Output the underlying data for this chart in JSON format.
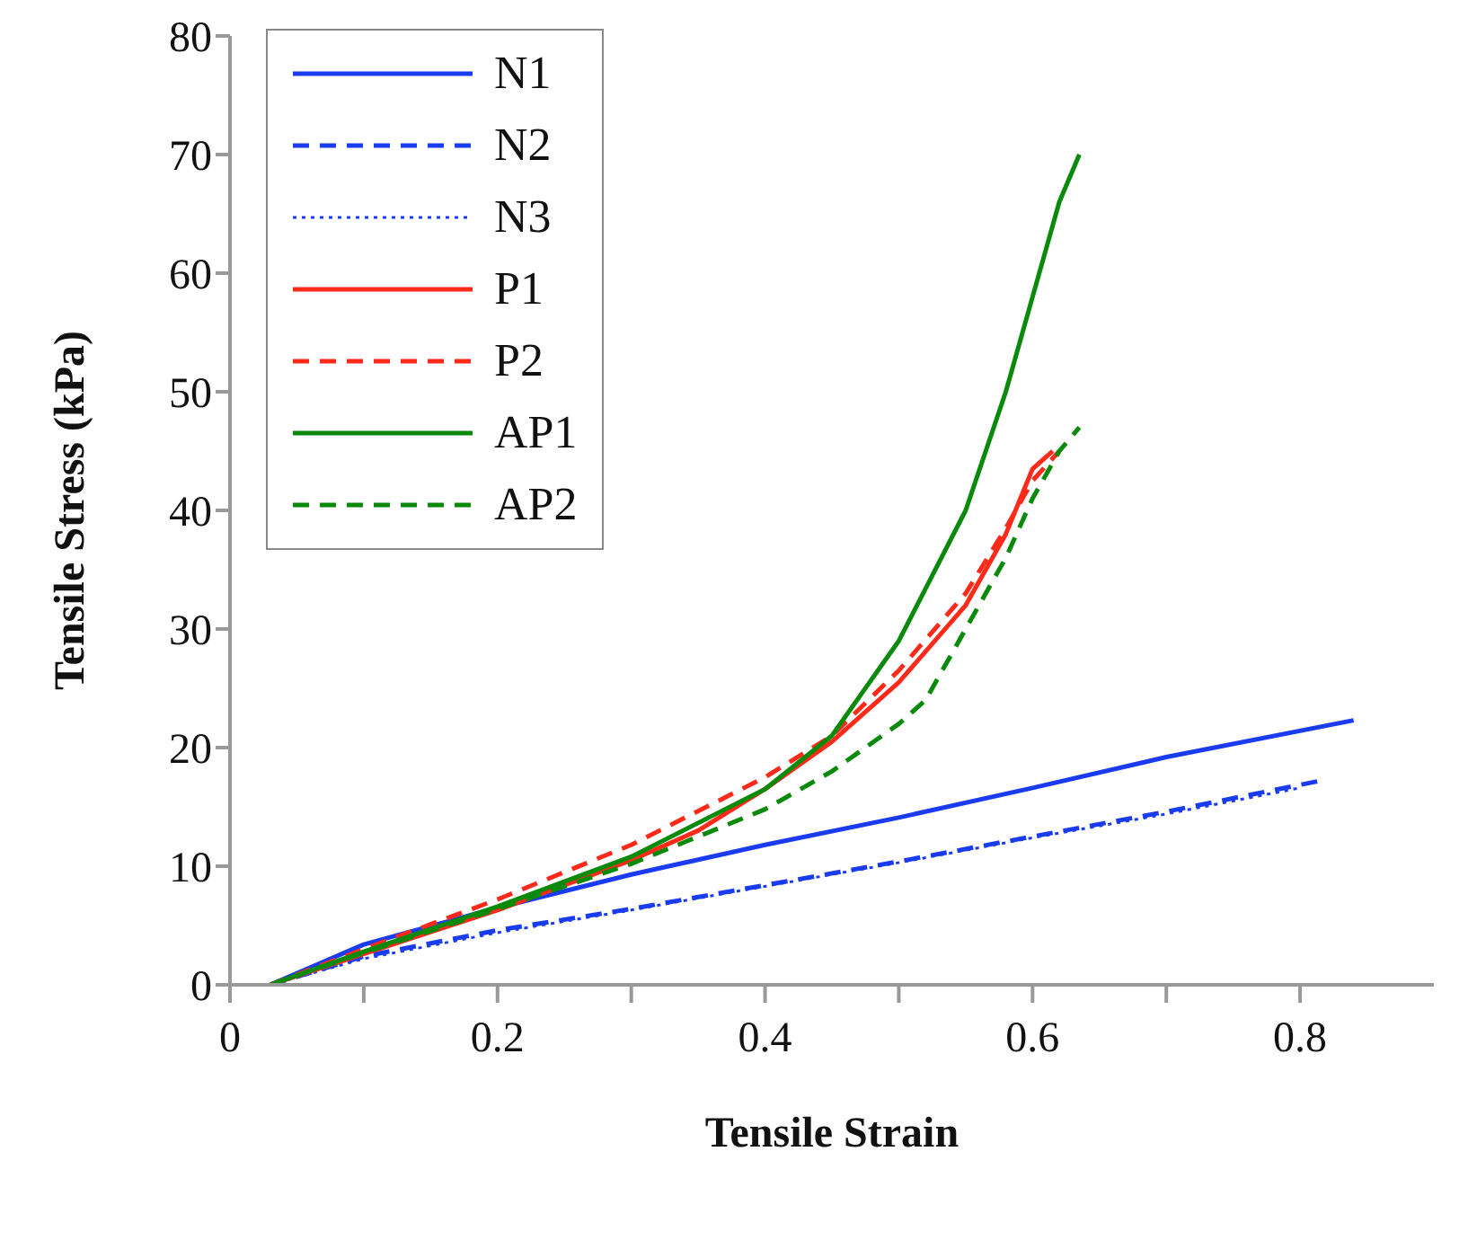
{
  "chart_data": {
    "type": "line",
    "xlabel": "Tensile Strain",
    "ylabel": "Tensile Stress (kPa)",
    "xlim": [
      0,
      0.9
    ],
    "xticks": [
      0,
      {
        "value": 0.1,
        "label": null
      },
      0.2,
      {
        "value": 0.3,
        "label": null
      },
      0.4,
      {
        "value": 0.5,
        "label": null
      },
      0.6,
      {
        "value": 0.7,
        "label": null
      },
      0.8
    ],
    "ylim": [
      0,
      80
    ],
    "yticks": [
      0,
      10,
      20,
      30,
      40,
      50,
      60,
      70,
      80
    ],
    "grid": false,
    "legend": "top left",
    "marker": "none",
    "series": [
      {
        "name": "N1",
        "color": "#1a3cf0",
        "line_style": "solid",
        "x": [
          0.03,
          0.1,
          0.2,
          0.3,
          0.4,
          0.5,
          0.6,
          0.7,
          0.84
        ],
        "values": [
          0,
          3.4,
          6.5,
          9.3,
          11.8,
          14.1,
          16.6,
          19.2,
          22.3
        ]
      },
      {
        "name": "N2",
        "color": "#1a3cf0",
        "line_style": "dashed",
        "x": [
          0.03,
          0.1,
          0.2,
          0.3,
          0.4,
          0.5,
          0.6,
          0.7,
          0.815
        ],
        "values": [
          0,
          2.4,
          4.6,
          6.4,
          8.4,
          10.4,
          12.5,
          14.6,
          17.2
        ]
      },
      {
        "name": "N3",
        "color": "#1a3cf0",
        "line_style": "dotted",
        "x": [
          0.03,
          0.1,
          0.2,
          0.3,
          0.4,
          0.5,
          0.6,
          0.7,
          0.8
        ],
        "values": [
          0,
          2.2,
          4.4,
          6.3,
          8.3,
          10.3,
          12.4,
          14.4,
          16.6
        ]
      },
      {
        "name": "P1",
        "color": "#ff2a1a",
        "line_style": "solid",
        "x": [
          0.03,
          0.1,
          0.2,
          0.3,
          0.35,
          0.4,
          0.45,
          0.5,
          0.55,
          0.58,
          0.6,
          0.615
        ],
        "values": [
          0,
          2.6,
          6.3,
          10.5,
          13,
          16.5,
          20.5,
          25.5,
          32,
          38,
          43.5,
          45
        ]
      },
      {
        "name": "P2",
        "color": "#ff2a1a",
        "line_style": "dashed",
        "x": [
          0.03,
          0.1,
          0.2,
          0.3,
          0.4,
          0.45,
          0.5,
          0.55,
          0.58,
          0.6,
          0.62
        ],
        "values": [
          0,
          3,
          7.2,
          11.8,
          17.5,
          21,
          26.5,
          33,
          38.5,
          42.5,
          45
        ]
      },
      {
        "name": "AP1",
        "color": "#0a8a0a",
        "line_style": "solid",
        "x": [
          0.03,
          0.1,
          0.2,
          0.3,
          0.4,
          0.45,
          0.5,
          0.55,
          0.58,
          0.6,
          0.62,
          0.635
        ],
        "values": [
          0,
          2.8,
          6.6,
          10.8,
          16.5,
          21,
          29,
          40,
          50,
          58,
          66,
          70
        ]
      },
      {
        "name": "AP2",
        "color": "#0a8a0a",
        "line_style": "dashed",
        "x": [
          0.03,
          0.1,
          0.2,
          0.3,
          0.4,
          0.45,
          0.5,
          0.52,
          0.55,
          0.58,
          0.6,
          0.62,
          0.635
        ],
        "values": [
          0,
          2.7,
          6.4,
          10.2,
          14.8,
          18,
          22,
          24,
          30,
          36,
          41,
          45,
          47
        ]
      }
    ]
  }
}
